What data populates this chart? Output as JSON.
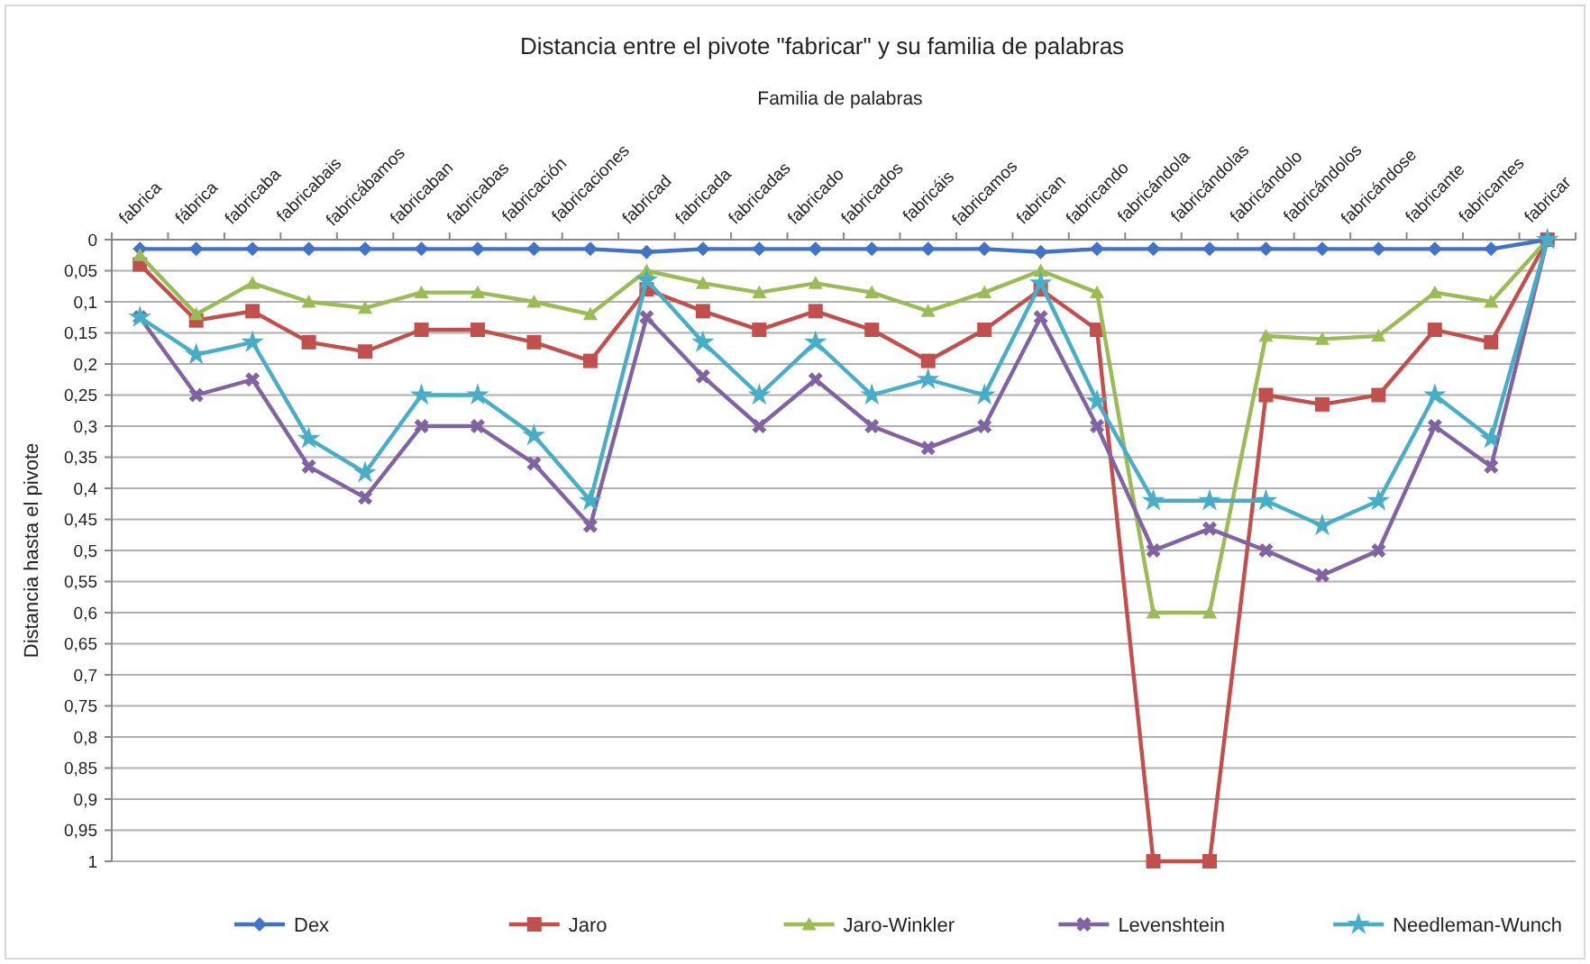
{
  "chart_data": {
    "type": "line",
    "title": "Distancia entre el pivote \"fabricar\" y su familia de palabras",
    "xlabel": "Familia de palabras",
    "ylabel": "Distancia hasta el pivote",
    "categories": [
      "fabrica",
      "fábrica",
      "fabricaba",
      "fabricabais",
      "fabricábamos",
      "fabricaban",
      "fabricabas",
      "fabricación",
      "fabricaciones",
      "fabricad",
      "fabricada",
      "fabricadas",
      "fabricado",
      "fabricados",
      "fabricáis",
      "fabricamos",
      "fabrican",
      "fabricando",
      "fabricándola",
      "fabricándolas",
      "fabricándolo",
      "fabricándolos",
      "fabricándose",
      "fabricante",
      "fabricantes",
      "fabricar"
    ],
    "ylim": [
      1,
      0
    ],
    "yticks": [
      0,
      {
        "value": 0.05,
        "label": "0,05"
      },
      {
        "value": 0.1,
        "label": "0,1"
      },
      {
        "value": 0.15,
        "label": "0,15"
      },
      {
        "value": 0.2,
        "label": "0,2"
      },
      {
        "value": 0.25,
        "label": "0,25"
      },
      {
        "value": 0.3,
        "label": "0,3"
      },
      {
        "value": 0.35,
        "label": "0,35"
      },
      {
        "value": 0.4,
        "label": "0,4"
      },
      {
        "value": 0.45,
        "label": "0,45"
      },
      {
        "value": 0.5,
        "label": "0,5"
      },
      {
        "value": 0.55,
        "label": "0,55"
      },
      {
        "value": 0.6,
        "label": "0,6"
      },
      {
        "value": 0.65,
        "label": "0,65"
      },
      {
        "value": 0.7,
        "label": "0,7"
      },
      {
        "value": 0.75,
        "label": "0,75"
      },
      {
        "value": 0.8,
        "label": "0,8"
      },
      {
        "value": 0.85,
        "label": "0,85"
      },
      {
        "value": 0.9,
        "label": "0,9"
      },
      {
        "value": 0.95,
        "label": "0,95"
      },
      1
    ],
    "grid": "y",
    "legend": "bottom",
    "series": [
      {
        "name": "Dex",
        "color": "#4472c4",
        "marker": "diamond",
        "values": [
          0.015,
          0.015,
          0.015,
          0.015,
          0.015,
          0.015,
          0.015,
          0.015,
          0.015,
          0.02,
          0.015,
          0.015,
          0.015,
          0.015,
          0.015,
          0.015,
          0.02,
          0.015,
          0.015,
          0.015,
          0.015,
          0.015,
          0.015,
          0.015,
          0.015,
          0
        ]
      },
      {
        "name": "Jaro",
        "color": "#c0504d",
        "marker": "square",
        "values": [
          0.04,
          0.13,
          0.115,
          0.165,
          0.18,
          0.145,
          0.145,
          0.165,
          0.195,
          0.08,
          0.115,
          0.145,
          0.115,
          0.145,
          0.195,
          0.145,
          0.08,
          0.145,
          1,
          1,
          0.25,
          0.265,
          0.25,
          0.145,
          0.165,
          0
        ]
      },
      {
        "name": "Jaro-Winkler",
        "color": "#9bbb59",
        "marker": "triangle",
        "values": [
          0.025,
          0.12,
          0.07,
          0.1,
          0.11,
          0.085,
          0.085,
          0.1,
          0.12,
          0.05,
          0.07,
          0.085,
          0.07,
          0.085,
          0.115,
          0.085,
          0.05,
          0.085,
          0.6,
          0.6,
          0.155,
          0.16,
          0.155,
          0.085,
          0.1,
          0
        ]
      },
      {
        "name": "Levenshtein",
        "color": "#8064a2",
        "marker": "cross",
        "values": [
          0.125,
          0.25,
          0.225,
          0.365,
          0.415,
          0.3,
          0.3,
          0.36,
          0.46,
          0.125,
          0.22,
          0.3,
          0.225,
          0.3,
          0.335,
          0.3,
          0.125,
          0.3,
          0.5,
          0.465,
          0.5,
          0.54,
          0.5,
          0.3,
          0.365,
          0
        ]
      },
      {
        "name": "Needleman-Wunch",
        "color": "#4bacc6",
        "marker": "star",
        "values": [
          0.125,
          0.185,
          0.165,
          0.32,
          0.375,
          0.25,
          0.25,
          0.315,
          0.42,
          0.065,
          0.165,
          0.25,
          0.165,
          0.25,
          0.225,
          0.25,
          0.07,
          0.26,
          0.42,
          0.42,
          0.42,
          0.46,
          0.42,
          0.25,
          0.32,
          0
        ]
      }
    ]
  }
}
